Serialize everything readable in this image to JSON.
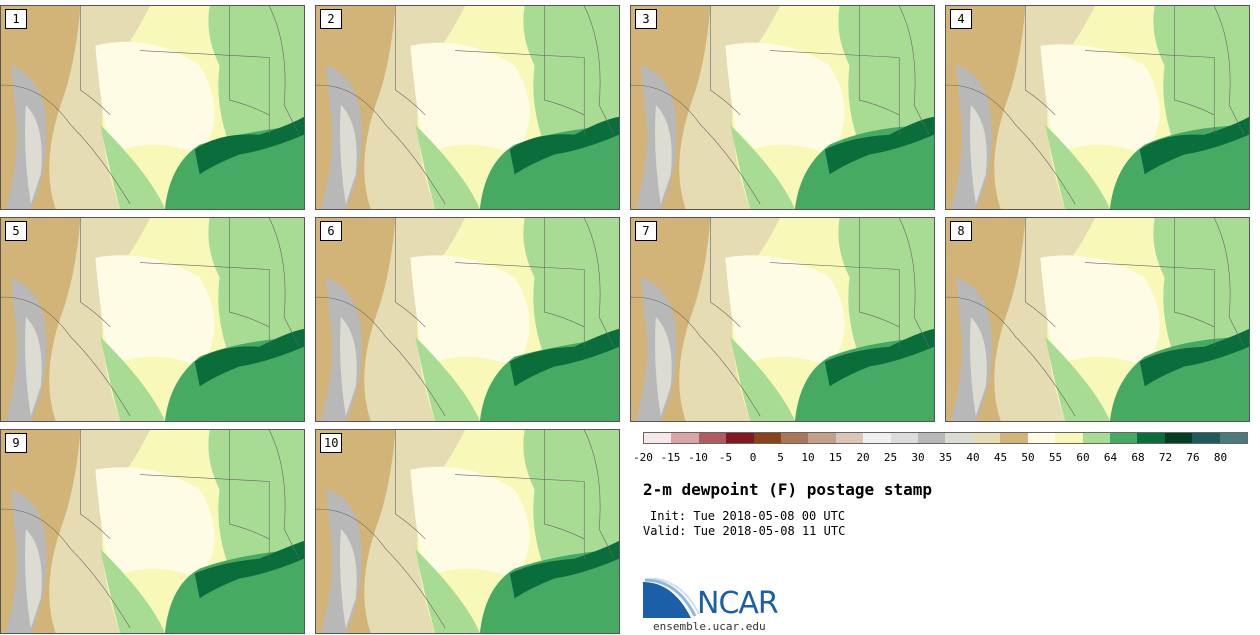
{
  "panels": [
    {
      "label": "1"
    },
    {
      "label": "2"
    },
    {
      "label": "3"
    },
    {
      "label": "4"
    },
    {
      "label": "5"
    },
    {
      "label": "6"
    },
    {
      "label": "7"
    },
    {
      "label": "8"
    },
    {
      "label": "9"
    },
    {
      "label": "10"
    }
  ],
  "colorbar": {
    "colors": [
      "#f6e8e8",
      "#d8a6a8",
      "#b05a62",
      "#851720",
      "#8a4218",
      "#a87658",
      "#c4a08a",
      "#dcc4b6",
      "#f0f0f0",
      "#dcdcdc",
      "#b8b8b8",
      "#dcdcd2",
      "#e6dcb4",
      "#d2b478",
      "#fffce6",
      "#f8f8b8",
      "#a8dc94",
      "#46aa62",
      "#0a6e3c",
      "#063c23",
      "#1e5a5a",
      "#4a7a7a"
    ],
    "tick_labels": [
      "-20",
      "-15",
      "-10",
      "-5",
      "0",
      "5",
      "10",
      "15",
      "20",
      "25",
      "30",
      "35",
      "40",
      "45",
      "50",
      "55",
      "60",
      "64",
      "68",
      "72",
      "76",
      "80"
    ]
  },
  "title": "2-m dewpoint (F) postage stamp",
  "init": "Init: Tue 2018-05-08 00 UTC",
  "valid": "Valid: Tue 2018-05-08 11 UTC",
  "logo": {
    "text": "NCAR",
    "url_text": "ensemble.ucar.edu",
    "color": "#1b5fa8"
  },
  "map_colors": {
    "tan": "#d2b478",
    "light_tan": "#e6dcb4",
    "gray": "#b8b8b8",
    "light_gray": "#dcdcd2",
    "pale_yellow": "#fffce6",
    "yellow": "#f8f8b8",
    "light_green": "#a8dc94",
    "green": "#46aa62",
    "dark_green": "#0a6e3c"
  }
}
